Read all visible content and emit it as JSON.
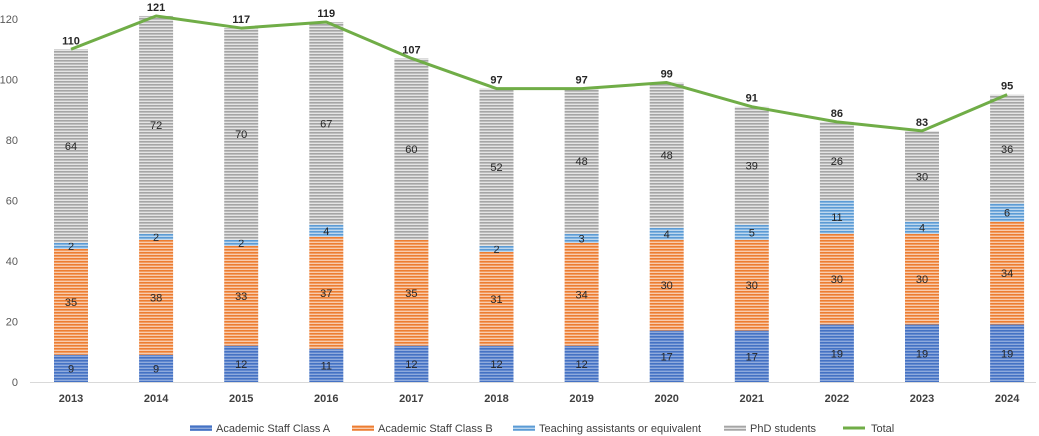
{
  "chart_data": {
    "type": "bar",
    "stacked": true,
    "categories": [
      "2013",
      "2014",
      "2015",
      "2016",
      "2017",
      "2018",
      "2019",
      "2020",
      "2021",
      "2022",
      "2023",
      "2024"
    ],
    "series": [
      {
        "name": "Academic Staff Class A",
        "color": "#4472C4",
        "values": [
          9,
          9,
          12,
          11,
          12,
          12,
          12,
          17,
          17,
          19,
          19,
          19
        ]
      },
      {
        "name": "Academic Staff Class B",
        "color": "#ED7D31",
        "values": [
          35,
          38,
          33,
          37,
          35,
          31,
          34,
          30,
          30,
          30,
          30,
          34
        ]
      },
      {
        "name": "Teaching assistants or equivalent",
        "color": "#5B9BD5",
        "values": [
          2,
          2,
          2,
          4,
          0,
          2,
          3,
          4,
          5,
          11,
          4,
          6
        ],
        "labels": [
          "2",
          "2",
          "2",
          "4",
          "",
          "2",
          "3",
          "4",
          "5",
          "11",
          "4",
          "6"
        ]
      },
      {
        "name": "PhD students",
        "color": "#A5A5A5",
        "values": [
          64,
          72,
          70,
          67,
          60,
          52,
          48,
          48,
          39,
          26,
          30,
          36
        ]
      }
    ],
    "line": {
      "name": "Total",
      "color": "#70AD47",
      "values": [
        110,
        121,
        117,
        119,
        107,
        97,
        97,
        99,
        91,
        86,
        83,
        95
      ]
    },
    "yticks": [
      "0",
      "20",
      "40",
      "60",
      "80",
      "100",
      "120"
    ],
    "ylim": [
      0,
      126
    ],
    "grid": false,
    "legend": "bottom"
  }
}
